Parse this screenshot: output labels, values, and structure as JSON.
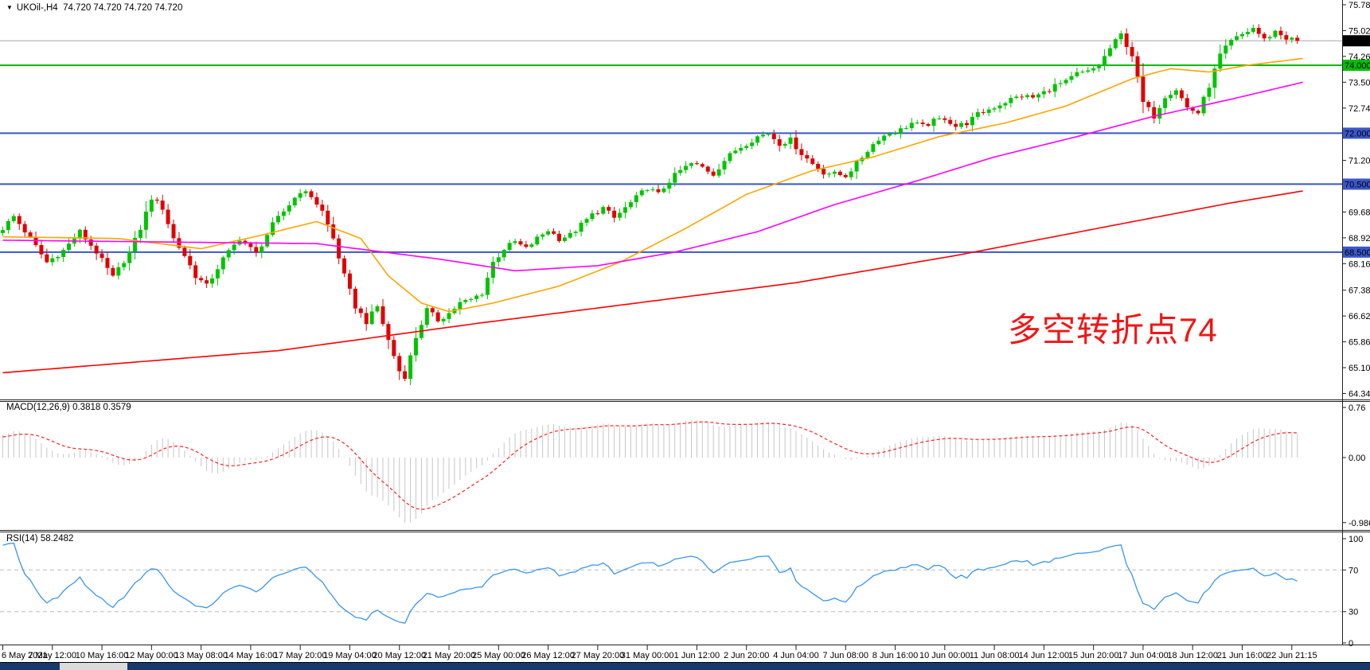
{
  "window": {
    "symbol_dropdown_icon": "▼",
    "symbol_line": "UKOil-,H4  74.720 74.720 74.720 74.720"
  },
  "annotation": {
    "text": "多空转折点74",
    "color": "#F21515"
  },
  "axis": {
    "time_labels": [
      "6 May 2021",
      "7 May 12:00",
      "10 May 16:00",
      "12 May 00:00",
      "13 May 08:00",
      "14 May 16:00",
      "17 May 20:00",
      "19 May 04:00",
      "20 May 12:00",
      "21 May 20:00",
      "25 May 00:00",
      "26 May 12:00",
      "27 May 20:00",
      "31 May 00:00",
      "1 Jun 12:00",
      "2 Jun 20:00",
      "4 Jun 04:00",
      "7 Jun 08:00",
      "8 Jun 16:00",
      "10 Jun 00:00",
      "11 Jun 08:00",
      "14 Jun 12:00",
      "15 Jun 20:00",
      "17 Jun 04:00",
      "18 Jun 12:00",
      "21 Jun 16:00",
      "22 Jun 21:15"
    ]
  },
  "chart_data": [
    {
      "type": "candlestick",
      "title": "UKOil-,H4",
      "timeframe": "H4",
      "current_price": 74.72,
      "ohlc_current": {
        "open": "74.720",
        "high": "74.720",
        "low": "74.720",
        "close": "74.720"
      },
      "ylim": [
        64.14,
        75.92
      ],
      "y_ticks": [
        "75.780",
        "75.020",
        "74.260",
        "73.500",
        "72.740",
        "71.980",
        "71.200",
        "70.440",
        "69.680",
        "68.920",
        "68.160",
        "67.380",
        "66.620",
        "65.860",
        "65.100",
        "64.340"
      ],
      "up_color": "#00C400",
      "down_color": "#E00000",
      "current_price_line_color": "#A8A8A8",
      "candles_count": 236,
      "horizontal_levels": [
        {
          "price": 74.0,
          "color": "#00BE00"
        },
        {
          "price": 72.0,
          "color": "#3A56C8"
        },
        {
          "price": 70.5,
          "color": "#3A56C8"
        },
        {
          "price": 68.5,
          "color": "#3A56C8"
        }
      ],
      "price_badges": [
        {
          "label": "74.720",
          "price": 74.72,
          "bg": "#000000",
          "fg": "#FFFFFF",
          "kind": "current-price"
        },
        {
          "label": "74.000",
          "price": 74.0,
          "bg": "#00BE00",
          "fg": "#002200",
          "kind": "level"
        },
        {
          "label": "72.000",
          "price": 72.0,
          "bg": "#3A56C8",
          "fg": "#FFFFFF",
          "kind": "level"
        },
        {
          "label": "70.500",
          "price": 70.5,
          "bg": "#3A56C8",
          "fg": "#FFFFFF",
          "kind": "level"
        },
        {
          "label": "68.500",
          "price": 68.5,
          "bg": "#3A56C8",
          "fg": "#FFFFFF",
          "kind": "level"
        }
      ],
      "close_path_anchors": [
        [
          -60,
          66.6
        ],
        [
          -40,
          67.2
        ],
        [
          -25,
          67.8
        ],
        [
          -12,
          68.3
        ],
        [
          -4,
          68.8
        ],
        [
          0,
          69.2
        ],
        [
          2,
          69.55
        ],
        [
          5,
          68.9
        ],
        [
          8,
          68.2
        ],
        [
          11,
          68.55
        ],
        [
          14,
          69.1
        ],
        [
          17,
          68.5
        ],
        [
          20,
          67.75
        ],
        [
          23,
          68.5
        ],
        [
          25,
          69.2
        ],
        [
          27,
          70.1
        ],
        [
          29,
          69.8
        ],
        [
          31,
          68.9
        ],
        [
          33,
          68.4
        ],
        [
          35,
          67.8
        ],
        [
          37,
          67.5
        ],
        [
          40,
          68.3
        ],
        [
          43,
          68.9
        ],
        [
          46,
          68.45
        ],
        [
          49,
          69.3
        ],
        [
          52,
          69.9
        ],
        [
          54,
          70.3
        ],
        [
          56,
          70.15
        ],
        [
          58,
          69.7
        ],
        [
          60,
          68.9
        ],
        [
          62,
          67.8
        ],
        [
          64,
          66.9
        ],
        [
          66,
          66.45
        ],
        [
          68,
          66.9
        ],
        [
          70,
          65.9
        ],
        [
          72,
          65.0
        ],
        [
          73,
          64.85
        ],
        [
          75,
          66.0
        ],
        [
          77,
          66.8
        ],
        [
          79,
          66.5
        ],
        [
          81,
          66.7
        ],
        [
          83,
          67.0
        ],
        [
          85,
          67.1
        ],
        [
          87,
          67.3
        ],
        [
          89,
          68.2
        ],
        [
          91,
          68.6
        ],
        [
          93,
          68.8
        ],
        [
          95,
          68.6
        ],
        [
          97,
          68.9
        ],
        [
          99,
          69.15
        ],
        [
          101,
          68.9
        ],
        [
          103,
          69.0
        ],
        [
          105,
          69.3
        ],
        [
          107,
          69.6
        ],
        [
          109,
          69.8
        ],
        [
          111,
          69.5
        ],
        [
          113,
          69.8
        ],
        [
          115,
          70.1
        ],
        [
          117,
          70.4
        ],
        [
          119,
          70.2
        ],
        [
          121,
          70.6
        ],
        [
          123,
          70.9
        ],
        [
          125,
          71.1
        ],
        [
          127,
          71.0
        ],
        [
          129,
          70.8
        ],
        [
          131,
          71.2
        ],
        [
          133,
          71.5
        ],
        [
          135,
          71.7
        ],
        [
          137,
          71.9
        ],
        [
          139,
          72.0
        ],
        [
          141,
          71.7
        ],
        [
          143,
          71.8
        ],
        [
          145,
          71.4
        ],
        [
          147,
          71.1
        ],
        [
          149,
          70.85
        ],
        [
          151,
          70.8
        ],
        [
          153,
          70.75
        ],
        [
          155,
          71.1
        ],
        [
          157,
          71.5
        ],
        [
          159,
          71.85
        ],
        [
          161,
          72.0
        ],
        [
          163,
          72.1
        ],
        [
          165,
          72.3
        ],
        [
          167,
          72.2
        ],
        [
          169,
          72.35
        ],
        [
          171,
          72.45
        ],
        [
          173,
          72.2
        ],
        [
          175,
          72.3
        ],
        [
          177,
          72.55
        ],
        [
          179,
          72.7
        ],
        [
          181,
          72.85
        ],
        [
          183,
          73.0
        ],
        [
          185,
          73.1
        ],
        [
          187,
          73.05
        ],
        [
          189,
          73.2
        ],
        [
          191,
          73.4
        ],
        [
          193,
          73.5
        ],
        [
          195,
          73.75
        ],
        [
          197,
          73.8
        ],
        [
          199,
          74.0
        ],
        [
          201,
          74.5
        ],
        [
          203,
          74.9
        ],
        [
          205,
          74.3
        ],
        [
          207,
          72.9
        ],
        [
          209,
          72.5
        ],
        [
          211,
          73.1
        ],
        [
          213,
          73.3
        ],
        [
          215,
          72.75
        ],
        [
          217,
          72.6
        ],
        [
          219,
          73.4
        ],
        [
          221,
          74.3
        ],
        [
          223,
          74.7
        ],
        [
          225,
          74.9
        ],
        [
          227,
          75.1
        ],
        [
          229,
          74.75
        ],
        [
          231,
          75.0
        ],
        [
          233,
          74.8
        ],
        [
          235,
          74.72
        ]
      ],
      "moving_averages": [
        {
          "name": "ma-fast",
          "color": "#FFA500",
          "anchors": [
            [
              0,
              68.95
            ],
            [
              21,
              68.9
            ],
            [
              36,
              68.6
            ],
            [
              47,
              69.0
            ],
            [
              57,
              69.4
            ],
            [
              65,
              68.9
            ],
            [
              70,
              67.8
            ],
            [
              76,
              67.0
            ],
            [
              81,
              66.75
            ],
            [
              89,
              67.0
            ],
            [
              101,
              67.5
            ],
            [
              112,
              68.2
            ],
            [
              124,
              69.2
            ],
            [
              135,
              70.2
            ],
            [
              147,
              70.9
            ],
            [
              158,
              71.3
            ],
            [
              170,
              71.9
            ],
            [
              182,
              72.3
            ],
            [
              193,
              72.8
            ],
            [
              205,
              73.6
            ],
            [
              212,
              73.9
            ],
            [
              219,
              73.8
            ],
            [
              226,
              74.0
            ],
            [
              236,
              74.2
            ]
          ]
        },
        {
          "name": "ma-medium",
          "color": "#FF00FF",
          "anchors": [
            [
              0,
              68.85
            ],
            [
              28,
              68.8
            ],
            [
              57,
              68.75
            ],
            [
              79,
              68.3
            ],
            [
              93,
              67.95
            ],
            [
              108,
              68.1
            ],
            [
              122,
              68.5
            ],
            [
              137,
              69.1
            ],
            [
              151,
              69.9
            ],
            [
              166,
              70.6
            ],
            [
              180,
              71.3
            ],
            [
              195,
              71.9
            ],
            [
              209,
              72.5
            ],
            [
              223,
              73.0
            ],
            [
              236,
              73.5
            ]
          ]
        },
        {
          "name": "ma-slow",
          "color": "#FF0000",
          "anchors": [
            [
              0,
              64.95
            ],
            [
              50,
              65.6
            ],
            [
              86,
              66.4
            ],
            [
              115,
              67.0
            ],
            [
              144,
              67.6
            ],
            [
              173,
              68.4
            ],
            [
              202,
              69.3
            ],
            [
              223,
              69.95
            ],
            [
              236,
              70.3
            ]
          ]
        }
      ]
    },
    {
      "type": "bar",
      "name": "MACD",
      "label": "MACD(12,26,9) 0.3818 0.3579",
      "params": [
        12,
        26,
        9
      ],
      "macd_value": 0.3818,
      "signal_value": 0.3579,
      "y_ticks": [
        "0.76",
        "0.00",
        "-0.9862"
      ],
      "min_value": -0.9862,
      "histogram_color": "#C6C6C6",
      "signal_color": "#FF2020"
    },
    {
      "type": "line",
      "name": "RSI",
      "label": "RSI(14) 58.2482",
      "period": 14,
      "value": 58.2482,
      "ylim": [
        0,
        100
      ],
      "y_ticks": [
        "100",
        "70",
        "30",
        "0"
      ],
      "levels": [
        70,
        30
      ],
      "line_color": "#3A96EE",
      "level_line_color": "#BBBBBB"
    }
  ]
}
